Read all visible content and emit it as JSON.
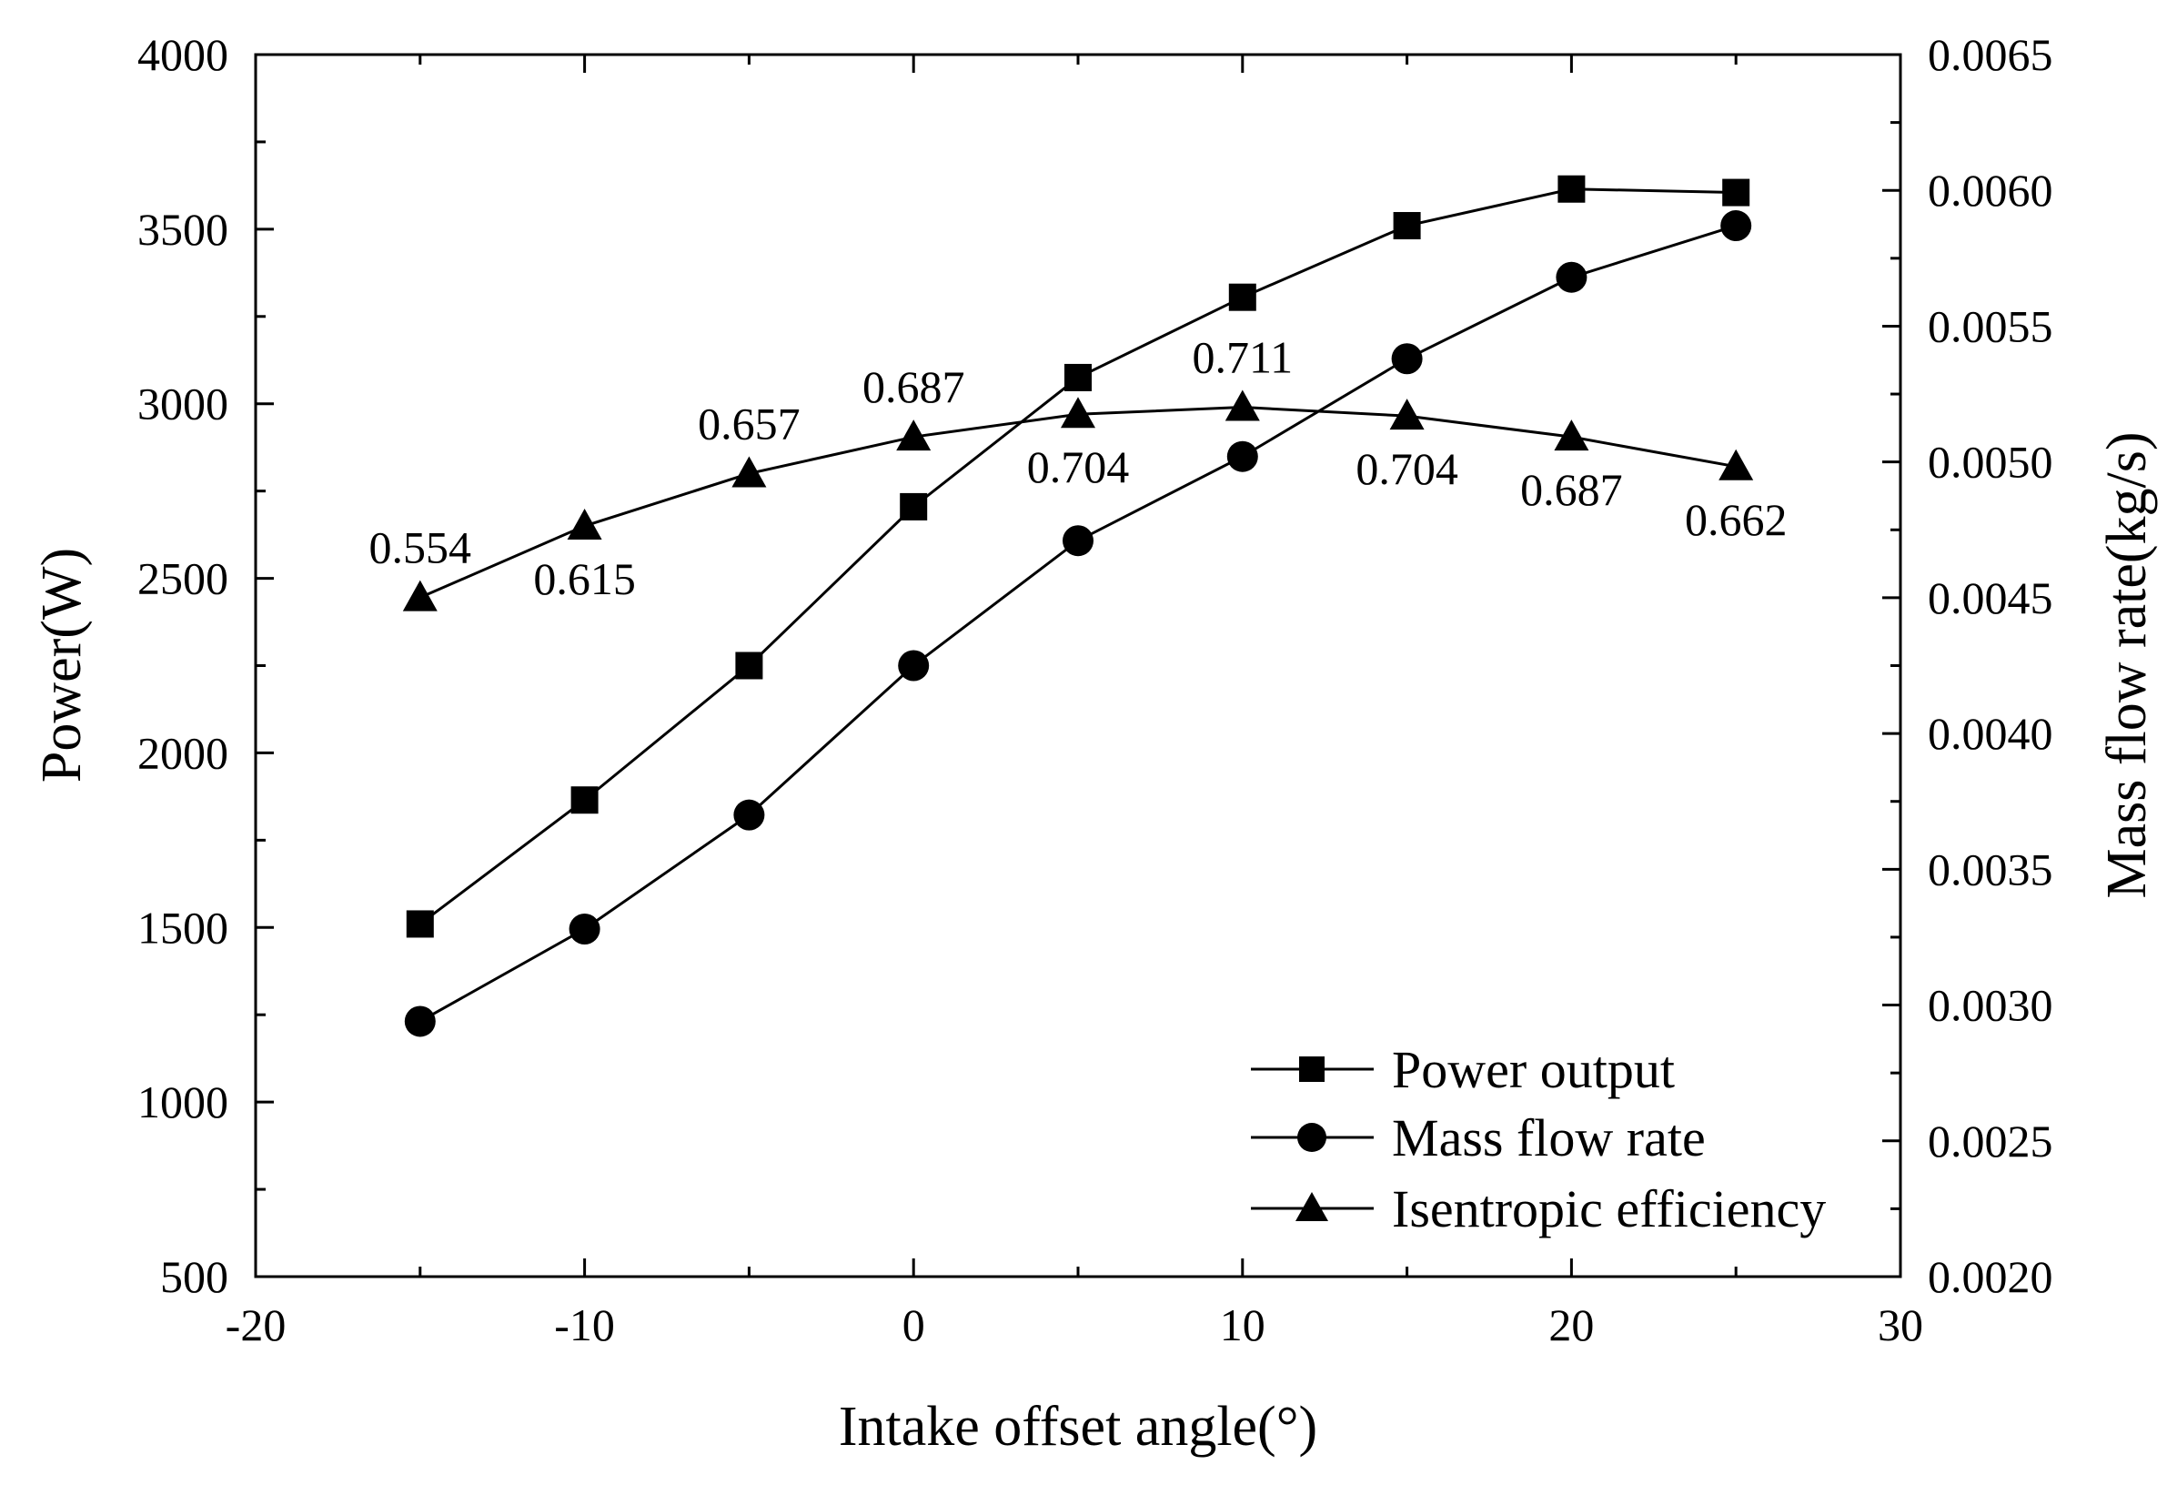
{
  "chart_data": {
    "type": "line",
    "title": "",
    "xlabel": "Intake offset angle(°)",
    "ylabel": "Power(W)",
    "y2label": "Mass flow rate(kg/s)",
    "xlim": [
      -20,
      30
    ],
    "ylim": [
      500,
      4000
    ],
    "y2lim": [
      0.002,
      0.0065
    ],
    "x_ticks": [
      -20,
      -10,
      0,
      10,
      20,
      30
    ],
    "x_tick_labels": [
      "-20",
      "-10",
      "0",
      "10",
      "20",
      "30"
    ],
    "y_ticks": [
      500,
      1000,
      1500,
      2000,
      2500,
      3000,
      3500,
      4000
    ],
    "y_tick_labels": [
      "500",
      "1000",
      "1500",
      "2000",
      "2500",
      "3000",
      "3500",
      "4000"
    ],
    "y2_ticks": [
      0.002,
      0.0025,
      0.003,
      0.0035,
      0.004,
      0.0045,
      0.005,
      0.0055,
      0.006,
      0.0065
    ],
    "y2_tick_labels": [
      "0.0020",
      "0.0025",
      "0.0030",
      "0.0035",
      "0.0040",
      "0.0045",
      "0.0050",
      "0.0055",
      "0.0060",
      "0.0065"
    ],
    "x": [
      -15,
      -10,
      -5,
      0,
      5,
      10,
      15,
      20,
      25
    ],
    "series": [
      {
        "name": "Power output",
        "marker": "square",
        "axis": "left",
        "values": [
          1510,
          1865,
          2250,
          2705,
          3075,
          3305,
          3510,
          3615,
          3605
        ]
      },
      {
        "name": "Mass flow rate",
        "marker": "circle",
        "axis": "right",
        "values": [
          0.00294,
          0.00328,
          0.0037,
          0.00425,
          0.00471,
          0.00502,
          0.00538,
          0.00568,
          0.00587
        ]
      },
      {
        "name": "Isentropic efficiency",
        "marker": "triangle",
        "axis": "left",
        "values": [
          2445,
          2650,
          2800,
          2905,
          2970,
          2990,
          2965,
          2905,
          2820
        ],
        "data_labels": [
          "0.554",
          "0.615",
          "0.657",
          "0.687",
          "0.704",
          "0.711",
          "0.704",
          "0.687",
          "0.662"
        ],
        "data_label_positions": [
          "above",
          "below",
          "above",
          "above",
          "below",
          "above",
          "below",
          "below",
          "below"
        ]
      }
    ],
    "legend_position": "bottom-right",
    "grid": false
  }
}
